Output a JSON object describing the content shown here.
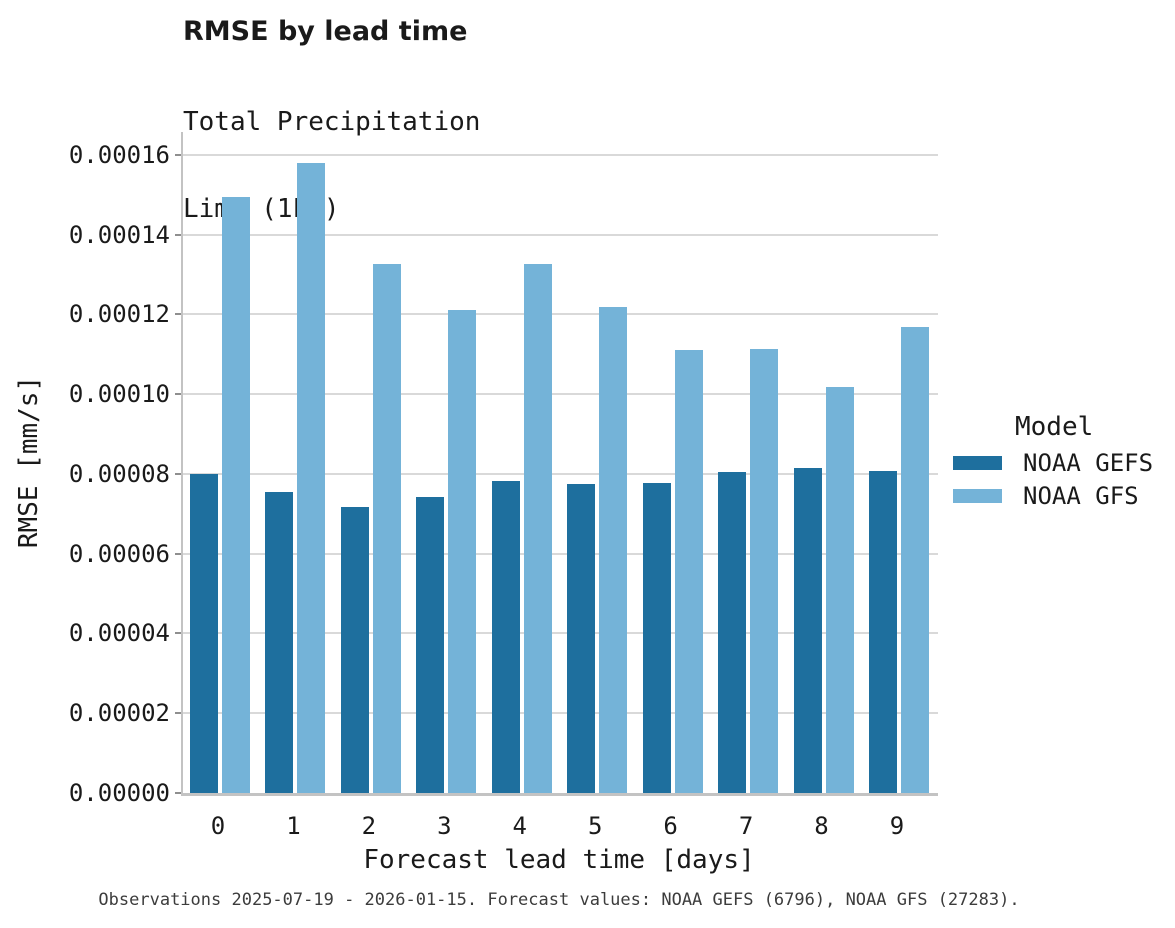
{
  "chart_data": {
    "type": "bar",
    "title": "RMSE by lead time",
    "subtitle_line1": "Total Precipitation",
    "subtitle_line2": "Lima (1LN)",
    "xlabel": "Forecast lead time [days]",
    "ylabel": "RMSE [mm/s]",
    "caption": "Observations 2025-07-19 - 2026-01-15. Forecast values: NOAA GEFS (6796), NOAA GFS (27283).",
    "legend_title": "Model",
    "legend_position": "right",
    "grid": "horizontal-only",
    "categories": [
      "0",
      "1",
      "2",
      "3",
      "4",
      "5",
      "6",
      "7",
      "8",
      "9"
    ],
    "series": [
      {
        "name": "NOAA GEFS",
        "color": "#1e6f9e",
        "values": [
          7.99e-05,
          7.55e-05,
          7.16e-05,
          7.43e-05,
          7.83e-05,
          7.74e-05,
          7.78e-05,
          8.06e-05,
          8.15e-05,
          8.08e-05
        ]
      },
      {
        "name": "NOAA GFS",
        "color": "#74b3d8",
        "values": [
          0.0001494,
          0.0001579,
          0.0001326,
          0.0001212,
          0.0001326,
          0.0001218,
          0.000111,
          0.0001112,
          0.0001019,
          0.0001169
        ]
      }
    ],
    "ylim": [
      0,
      0.0001657
    ],
    "yticks": {
      "values": [
        0,
        2e-05,
        4e-05,
        6e-05,
        8e-05,
        0.0001,
        0.00012,
        0.00014,
        0.00016
      ],
      "labels": [
        "0.00000",
        "0.00002",
        "0.00004",
        "0.00006",
        "0.00008",
        "0.00010",
        "0.00012",
        "0.00014",
        "0.00016"
      ]
    },
    "colors": {
      "background": "#ffffff",
      "gridline": "#d9d9d9",
      "axis_line": "#c3c3c3",
      "tick_mark": "#8f8f8f",
      "text": "#1a1a1a",
      "caption_text": "#3c3c3c"
    }
  }
}
